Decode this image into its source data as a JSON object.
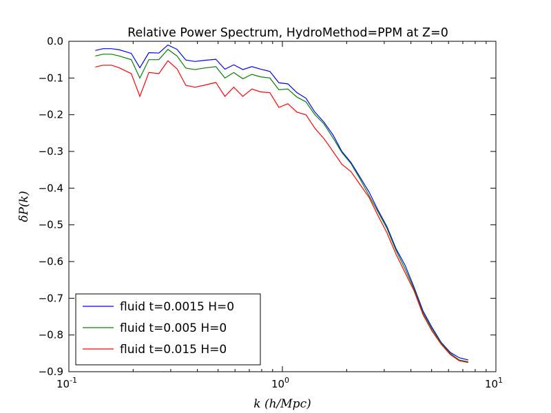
{
  "chart_data": {
    "type": "line",
    "title": "Relative Power Spectrum, HydroMethod=PPM at Z=0",
    "xlabel": "k (h/Mpc)",
    "ylabel": "δP(k)",
    "xscale": "log",
    "xlim": [
      0.1,
      10
    ],
    "ylim": [
      -0.9,
      0.0
    ],
    "grid": false,
    "legend_position": "lower-left",
    "x_ticks": [
      {
        "value": 0.1,
        "base": "10",
        "exp": "-1"
      },
      {
        "value": 1,
        "base": "10",
        "exp": "0"
      },
      {
        "value": 10,
        "base": "10",
        "exp": "1"
      }
    ],
    "y_ticks": [
      {
        "value": 0.0,
        "label": "0.0"
      },
      {
        "value": -0.1,
        "label": "−0.1"
      },
      {
        "value": -0.2,
        "label": "−0.2"
      },
      {
        "value": -0.3,
        "label": "−0.3"
      },
      {
        "value": -0.4,
        "label": "−0.4"
      },
      {
        "value": -0.5,
        "label": "−0.5"
      },
      {
        "value": -0.6,
        "label": "−0.6"
      },
      {
        "value": -0.7,
        "label": "−0.7"
      },
      {
        "value": -0.8,
        "label": "−0.8"
      },
      {
        "value": -0.9,
        "label": "−0.9"
      }
    ],
    "x": [
      0.133,
      0.145,
      0.158,
      0.172,
      0.196,
      0.215,
      0.237,
      0.264,
      0.291,
      0.321,
      0.353,
      0.389,
      0.429,
      0.488,
      0.538,
      0.592,
      0.653,
      0.72,
      0.793,
      0.874,
      0.963,
      1.061,
      1.17,
      1.289,
      1.42,
      1.565,
      1.726,
      1.9,
      2.095,
      2.31,
      2.544,
      2.805,
      3.09,
      3.406,
      3.755,
      4.138,
      4.56,
      5.027,
      5.54,
      6.105,
      6.73,
      7.42
    ],
    "series": [
      {
        "name": "fluid t=0.0015 H=0",
        "color": "#0000ff",
        "values": [
          -0.025,
          -0.02,
          -0.02,
          -0.023,
          -0.033,
          -0.072,
          -0.031,
          -0.032,
          -0.01,
          -0.022,
          -0.051,
          -0.055,
          -0.052,
          -0.049,
          -0.076,
          -0.064,
          -0.077,
          -0.069,
          -0.076,
          -0.082,
          -0.113,
          -0.116,
          -0.14,
          -0.155,
          -0.193,
          -0.22,
          -0.255,
          -0.3,
          -0.33,
          -0.37,
          -0.41,
          -0.46,
          -0.505,
          -0.565,
          -0.61,
          -0.67,
          -0.735,
          -0.78,
          -0.82,
          -0.847,
          -0.862,
          -0.868
        ]
      },
      {
        "name": "fluid t=0.005 H=0",
        "color": "#008000",
        "values": [
          -0.04,
          -0.035,
          -0.035,
          -0.04,
          -0.05,
          -0.1,
          -0.05,
          -0.05,
          -0.022,
          -0.04,
          -0.073,
          -0.077,
          -0.073,
          -0.069,
          -0.1,
          -0.085,
          -0.102,
          -0.09,
          -0.097,
          -0.1,
          -0.132,
          -0.13,
          -0.152,
          -0.165,
          -0.2,
          -0.225,
          -0.263,
          -0.303,
          -0.333,
          -0.375,
          -0.42,
          -0.465,
          -0.51,
          -0.57,
          -0.62,
          -0.675,
          -0.74,
          -0.785,
          -0.822,
          -0.85,
          -0.868,
          -0.873
        ]
      },
      {
        "name": "fluid t=0.015 H=0",
        "color": "#ff0000",
        "values": [
          -0.07,
          -0.065,
          -0.065,
          -0.072,
          -0.088,
          -0.15,
          -0.085,
          -0.088,
          -0.053,
          -0.075,
          -0.12,
          -0.125,
          -0.12,
          -0.112,
          -0.15,
          -0.125,
          -0.15,
          -0.13,
          -0.138,
          -0.14,
          -0.18,
          -0.17,
          -0.193,
          -0.2,
          -0.237,
          -0.265,
          -0.3,
          -0.335,
          -0.355,
          -0.39,
          -0.425,
          -0.475,
          -0.522,
          -0.58,
          -0.63,
          -0.68,
          -0.745,
          -0.79,
          -0.825,
          -0.853,
          -0.87,
          -0.875
        ]
      }
    ]
  }
}
